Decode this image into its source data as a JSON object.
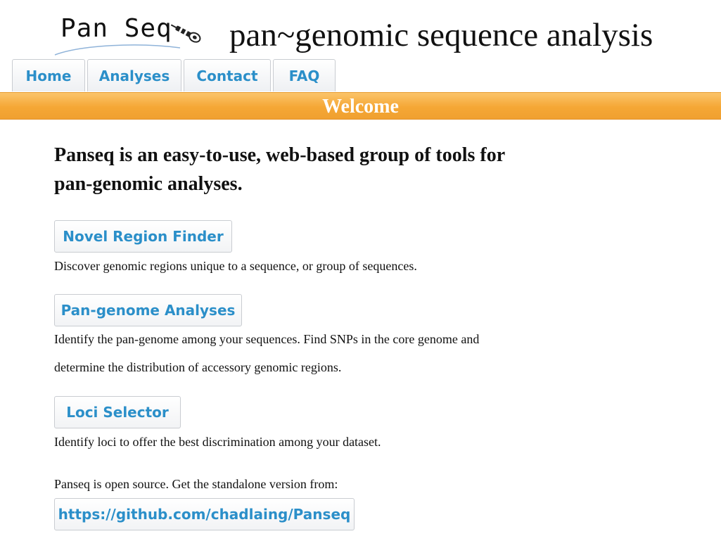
{
  "header": {
    "logo_text": "Pan Seq",
    "title": "pan~genomic sequence analysis"
  },
  "nav": {
    "tabs": [
      {
        "label": "Home"
      },
      {
        "label": "Analyses"
      },
      {
        "label": "Contact"
      },
      {
        "label": "FAQ"
      }
    ]
  },
  "banner": {
    "title": "Welcome"
  },
  "main": {
    "intro": "Panseq is an easy-to-use, web-based group of tools for pan-genomic analyses.",
    "tools": [
      {
        "label": "Novel Region Finder",
        "description": "Discover genomic regions unique to a sequence, or group of sequences."
      },
      {
        "label": "Pan-genome Analyses",
        "description": "Identify the pan-genome among your sequences. Find SNPs in the core genome and determine the distribution of accessory genomic regions."
      },
      {
        "label": "Loci Selector",
        "description": "Identify loci to offer the best discrimination among your dataset."
      }
    ],
    "open_source_text": "Panseq is open source. Get the standalone version from:",
    "github_link": "https://github.com/chadlaing/Panseq"
  },
  "colors": {
    "accent_blue": "#2b8fc9",
    "banner_orange": "#f5a735"
  }
}
